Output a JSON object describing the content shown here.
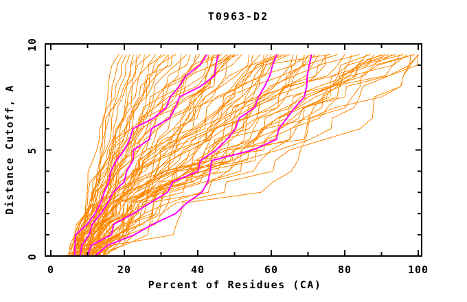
{
  "chart_data": {
    "type": "line",
    "title": "T0963-D2",
    "xlabel": "Percent of Residues (CA)",
    "ylabel": "Distance Cutoff, A",
    "xlim": [
      0,
      100
    ],
    "ylim": [
      0,
      10
    ],
    "grid": false,
    "legend": null,
    "x_major_ticks": [
      0,
      20,
      40,
      60,
      80,
      100
    ],
    "x_minor_ticks": [
      10,
      30,
      50,
      70,
      90
    ],
    "y_major_ticks": [
      0,
      5,
      10
    ],
    "y_minor_ticks": [
      1,
      2,
      3,
      4,
      6,
      7,
      8,
      9
    ],
    "x_tick_labels": [
      "0",
      "20",
      "40",
      "60",
      "80",
      "100"
    ],
    "y_tick_labels": [
      "0",
      "5",
      "10"
    ],
    "colors": {
      "ensemble": "#ff8800",
      "highlight": "#ff00ff",
      "axis": "#000000",
      "background": "#ffffff"
    },
    "description": "Each curve = one predicted model: percent of CA residues superimposable within a distance cutoff; curves sampled at cutoffs 0 to 9.5 step 0.5. Control x-values given at cutoffs 0, 2.5, 5, 7.5, 9.5.",
    "control_cutoffs": [
      0,
      2.5,
      5,
      7.5,
      9.5
    ],
    "highlighted_models": [
      [
        6.5,
        13.5,
        20,
        32.5,
        42.5
      ],
      [
        8,
        15.5,
        22.5,
        35,
        45.5
      ],
      [
        10,
        27,
        45,
        56.5,
        61.5
      ],
      [
        12,
        37,
        55,
        69,
        71
      ]
    ],
    "ensemble_models": [
      [
        4.5,
        9.5,
        12.5,
        15.5,
        18.5
      ],
      [
        5,
        10,
        13.5,
        16.5,
        19.5
      ],
      [
        5.5,
        10.5,
        14,
        17.5,
        20.5
      ],
      [
        6,
        11,
        14.5,
        18,
        21.5
      ],
      [
        5,
        10.5,
        15,
        19,
        22.5
      ],
      [
        6.5,
        11.5,
        15.5,
        19.5,
        23.5
      ],
      [
        5.5,
        11,
        16,
        20.5,
        24.5
      ],
      [
        7,
        12,
        16.5,
        21,
        25.5
      ],
      [
        6,
        11.5,
        17,
        22,
        27
      ],
      [
        7.5,
        12.5,
        17.5,
        23,
        28.5
      ],
      [
        6.5,
        12,
        18,
        24,
        30
      ],
      [
        8,
        13,
        18.5,
        25,
        31
      ],
      [
        5.5,
        11.5,
        17,
        24.5,
        32
      ],
      [
        7,
        13.5,
        19,
        26,
        32
      ],
      [
        5.5,
        11,
        16.5,
        25,
        33
      ],
      [
        6,
        12,
        17.5,
        26,
        34
      ],
      [
        6.5,
        12.5,
        18.5,
        27,
        35.5
      ],
      [
        7,
        13,
        19.5,
        28,
        37
      ],
      [
        7.5,
        13.5,
        20.5,
        29,
        38
      ],
      [
        8,
        14,
        21,
        30,
        39.5
      ],
      [
        6,
        13,
        20,
        30.5,
        40.5
      ],
      [
        8.5,
        15,
        22,
        31,
        42
      ],
      [
        7,
        14,
        21.5,
        32,
        43
      ],
      [
        9,
        15.5,
        23,
        33,
        44.5
      ],
      [
        7.5,
        14.5,
        22.5,
        34,
        45.5
      ],
      [
        9.5,
        16,
        24,
        35,
        46.5
      ],
      [
        8,
        15,
        25,
        36,
        48
      ],
      [
        10,
        17,
        26,
        37,
        49
      ],
      [
        8.5,
        16.5,
        27,
        38.5,
        50
      ],
      [
        10.5,
        18,
        28,
        40,
        50
      ],
      [
        9,
        17,
        29,
        41,
        49
      ],
      [
        11,
        18.5,
        30,
        42,
        48
      ],
      [
        9.5,
        17.5,
        28.5,
        39,
        46
      ],
      [
        10,
        18,
        27.5,
        38,
        44
      ],
      [
        6.5,
        14,
        24,
        38,
        51
      ],
      [
        7,
        15,
        26,
        40,
        52
      ],
      [
        9,
        17,
        28,
        42,
        54
      ],
      [
        7.5,
        16,
        30,
        44,
        55
      ],
      [
        10,
        18,
        32,
        45,
        57
      ],
      [
        8,
        17,
        33,
        46,
        58
      ],
      [
        11,
        19,
        34,
        48,
        60
      ],
      [
        8.5,
        18,
        35,
        49,
        61
      ],
      [
        12,
        20,
        36,
        50,
        63
      ],
      [
        9,
        19,
        37,
        52,
        64
      ],
      [
        12.5,
        21,
        38,
        53,
        66
      ],
      [
        9.5,
        20,
        40,
        55,
        67
      ],
      [
        13,
        22,
        42,
        56,
        69
      ],
      [
        10,
        21,
        44,
        58,
        70
      ],
      [
        13.5,
        23,
        45,
        59,
        72
      ],
      [
        10.5,
        22,
        46,
        61,
        73
      ],
      [
        14,
        24,
        48,
        62,
        75
      ],
      [
        11,
        23,
        50,
        64,
        75
      ],
      [
        9,
        18,
        34,
        50,
        59
      ],
      [
        10,
        20,
        39,
        54,
        65
      ],
      [
        12,
        22,
        43,
        57,
        71
      ],
      [
        8,
        16,
        31,
        47,
        62
      ],
      [
        7,
        16,
        30,
        52,
        76
      ],
      [
        11,
        22,
        40,
        58,
        78
      ],
      [
        8,
        18,
        34,
        56,
        80
      ],
      [
        12,
        24,
        44,
        62,
        82
      ],
      [
        9,
        20,
        38,
        60,
        84
      ],
      [
        13,
        26,
        48,
        66,
        86
      ],
      [
        9.5,
        22,
        42,
        64,
        88
      ],
      [
        14,
        28,
        52,
        70,
        90
      ],
      [
        10,
        24,
        46,
        68,
        91
      ],
      [
        14.5,
        30,
        56,
        74,
        93
      ],
      [
        10.5,
        26,
        50,
        72,
        94
      ],
      [
        15,
        32,
        60,
        78,
        96
      ],
      [
        11,
        28,
        54,
        76,
        97
      ],
      [
        12,
        30,
        58,
        80,
        98
      ],
      [
        11.5,
        25,
        48,
        74,
        99
      ],
      [
        13,
        32,
        62,
        84,
        100
      ],
      [
        12.5,
        34,
        65,
        88,
        100
      ],
      [
        14,
        36,
        68,
        90,
        100
      ],
      [
        10,
        22,
        44,
        70,
        95
      ],
      [
        13.5,
        28,
        55,
        82,
        99
      ],
      [
        11,
        26,
        52,
        78,
        92
      ],
      [
        12,
        27,
        50,
        75,
        87
      ]
    ]
  }
}
